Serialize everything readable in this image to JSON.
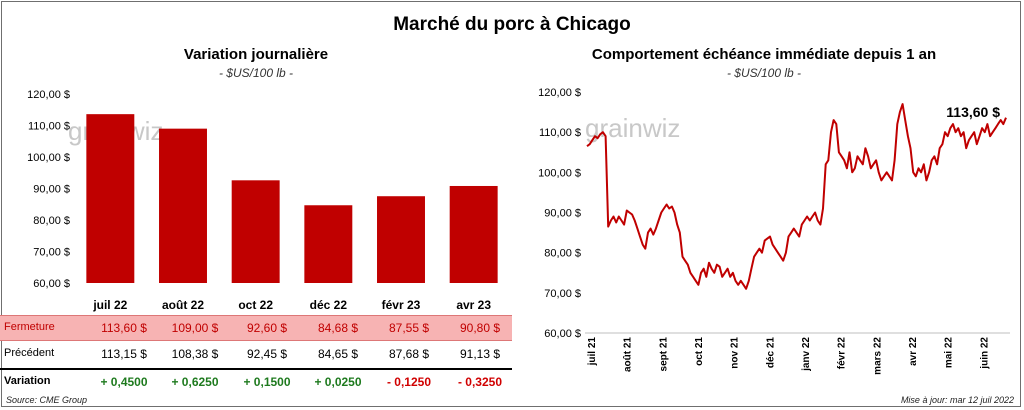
{
  "title": "Marché du porc à Chicago",
  "left": {
    "title": "Variation  journalière",
    "unit": "- $US/100 lb -",
    "watermark": "grainwiz"
  },
  "right": {
    "title": "Comportement  échéance immédiate depuis 1 an",
    "unit": "- $US/100 lb -",
    "watermark": "grainwiz",
    "last_value_label": "113,60 $"
  },
  "table": {
    "rows": [
      {
        "label": "Fermeture",
        "values": [
          "113,60  $",
          "109,00  $",
          "92,60  $",
          "84,68  $",
          "87,55  $",
          "90,80  $"
        ]
      },
      {
        "label": "Précédent",
        "values": [
          "113,15  $",
          "108,38  $",
          "92,45  $",
          "84,65  $",
          "87,68  $",
          "91,13  $"
        ]
      },
      {
        "label": "Variation",
        "values": [
          "+ 0,4500",
          "+ 0,6250",
          "+ 0,1500",
          "+ 0,0250",
          "- 0,1250",
          "- 0,3250"
        ]
      }
    ]
  },
  "footer": {
    "source": "Source: CME Group",
    "updated": "Mise à jour: mar 12 juil 2022"
  },
  "colors": {
    "bar": "#c00000",
    "line": "#c00000",
    "positive": "#1e7a1e",
    "negative": "#d00000",
    "close_row_bg": "#f7b3b3"
  },
  "chart_data": [
    {
      "type": "bar",
      "categories": [
        "juil 22",
        "août 22",
        "oct 22",
        "déc 22",
        "févr 23",
        "avr 23"
      ],
      "values": [
        113.6,
        109.0,
        92.6,
        84.68,
        87.55,
        90.8
      ],
      "ylim": [
        60,
        120
      ],
      "yticks": [
        60,
        70,
        80,
        90,
        100,
        110,
        120
      ],
      "ytick_labels": [
        "60,00 $",
        "70,00 $",
        "80,00 $",
        "90,00 $",
        "100,00 $",
        "110,00 $",
        "120,00 $"
      ],
      "grid": false
    },
    {
      "type": "line",
      "x_labels": [
        "juil 21",
        "août 21",
        "sept 21",
        "oct 21",
        "nov 21",
        "déc 21",
        "janv 22",
        "févr 22",
        "mars 22",
        "avr 22",
        "mai 22",
        "juin 22"
      ],
      "ylim": [
        60,
        120
      ],
      "yticks": [
        60,
        70,
        80,
        90,
        100,
        110,
        120
      ],
      "ytick_labels": [
        "60,00 $",
        "70,00 $",
        "80,00 $",
        "90,00 $",
        "100,00 $",
        "110,00 $",
        "120,00 $"
      ],
      "grid": false,
      "series": [
        {
          "values": [
            106.5,
            107,
            108,
            109,
            108.5,
            109.5,
            110,
            109,
            86.5,
            88,
            89,
            87.5,
            89,
            88,
            87,
            90.5,
            90,
            89.5,
            88,
            86,
            84,
            82,
            81,
            85,
            86,
            84.5,
            86,
            88,
            90,
            91,
            92,
            91,
            91.5,
            90,
            87,
            85,
            79,
            78,
            77,
            75,
            74,
            73,
            72,
            75,
            76,
            74,
            77.5,
            76,
            75,
            77,
            76.5,
            74,
            75,
            76,
            74,
            75,
            73,
            72,
            73,
            72,
            71,
            73,
            76,
            79,
            80,
            81,
            80,
            83,
            83.5,
            84,
            82,
            81,
            80,
            79,
            78,
            80,
            84,
            85,
            86,
            85,
            84,
            87,
            88,
            89,
            88,
            89,
            90,
            88,
            87,
            91,
            102,
            103,
            110,
            113,
            112,
            105,
            104,
            103,
            101,
            105,
            100,
            101,
            104,
            103,
            102,
            106,
            104,
            101,
            102,
            103,
            100,
            98,
            99,
            100,
            99,
            98,
            103,
            112,
            115,
            117,
            113,
            109,
            106,
            100,
            99,
            101,
            100,
            102,
            98,
            100,
            103,
            104,
            102,
            106,
            107,
            110,
            109,
            111,
            112,
            110,
            111,
            109,
            110,
            106,
            108,
            109,
            110,
            107,
            109,
            111,
            110,
            112,
            109,
            110,
            111,
            112,
            113,
            112,
            113.6
          ]
        }
      ]
    }
  ]
}
